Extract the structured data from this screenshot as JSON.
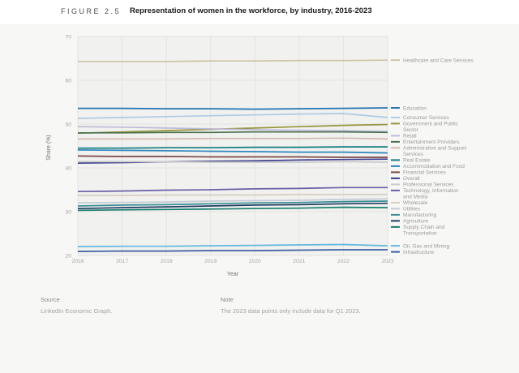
{
  "figure": {
    "label": "FIGURE 2.5",
    "title": "Representation of women in the workforce, by industry, 2016-2023"
  },
  "chart_data": {
    "type": "line",
    "x": [
      2016,
      2017,
      2018,
      2019,
      2020,
      2021,
      2022,
      2023
    ],
    "xlabel": "Year",
    "ylabel": "Share (%)",
    "ylim": [
      20,
      70
    ],
    "yticks": [
      20,
      30,
      40,
      50,
      60,
      70
    ],
    "grid": true,
    "legend_position": "right",
    "series": [
      {
        "name": "Healthcare and Care Services",
        "legend_lines": [
          "Healthcare and Care Services"
        ],
        "color": "#cdc5a2",
        "values": [
          64.3,
          64.3,
          64.3,
          64.4,
          64.4,
          64.5,
          64.5,
          64.6
        ]
      },
      {
        "name": "Education",
        "legend_lines": [
          "Education"
        ],
        "color": "#2272b2",
        "values": [
          53.6,
          53.6,
          53.5,
          53.5,
          53.4,
          53.5,
          53.6,
          53.7
        ]
      },
      {
        "name": "Consumer Services",
        "legend_lines": [
          "Consumer Services"
        ],
        "color": "#aecbe3",
        "values": [
          51.3,
          51.5,
          51.7,
          51.9,
          52.1,
          52.3,
          52.4,
          51.5
        ]
      },
      {
        "name": "Government and Public Sector",
        "legend_lines": [
          "Government and Public",
          "Sector"
        ],
        "color": "#96953e",
        "values": [
          47.9,
          48.2,
          48.5,
          48.8,
          49.1,
          49.4,
          49.7,
          49.9
        ]
      },
      {
        "name": "Retail",
        "legend_lines": [
          "Retail"
        ],
        "color": "#bebad7",
        "values": [
          49.4,
          49.3,
          49.1,
          48.9,
          48.7,
          48.6,
          48.5,
          48.3
        ]
      },
      {
        "name": "Entertainment Providers",
        "legend_lines": [
          "Entertainment Providers"
        ],
        "color": "#49714e",
        "values": [
          48.0,
          48.0,
          48.1,
          48.1,
          48.2,
          48.2,
          48.2,
          48.1
        ]
      },
      {
        "name": "Administrative and Support Services",
        "legend_lines": [
          "Administrative and Support",
          "Services"
        ],
        "color": "#cdbbb1",
        "values": [
          46.6,
          46.6,
          46.6,
          46.7,
          46.7,
          46.7,
          46.8,
          46.6
        ]
      },
      {
        "name": "Real Estate",
        "legend_lines": [
          "Real Estate"
        ],
        "color": "#0f7a80",
        "values": [
          44.5,
          44.5,
          44.6,
          44.6,
          44.7,
          44.7,
          44.8,
          44.8
        ]
      },
      {
        "name": "Accommodation and Food",
        "legend_lines": [
          "Accommodation and Food"
        ],
        "color": "#2c86be",
        "values": [
          44.1,
          44.0,
          43.9,
          43.8,
          43.7,
          43.6,
          43.6,
          43.4
        ]
      },
      {
        "name": "Financial Services",
        "legend_lines": [
          "Financial Services"
        ],
        "color": "#7c4a47",
        "values": [
          42.7,
          42.6,
          42.6,
          42.5,
          42.5,
          42.5,
          42.4,
          42.4
        ]
      },
      {
        "name": "Overall",
        "legend_lines": [
          "Overall"
        ],
        "color": "#3a3a8e",
        "values": [
          41.1,
          41.2,
          41.4,
          41.5,
          41.6,
          41.8,
          41.9,
          42.0
        ]
      },
      {
        "name": "Professional Services",
        "legend_lines": [
          "Professional Services"
        ],
        "color": "#c9c9c9",
        "values": [
          41.4,
          41.4,
          41.4,
          41.3,
          41.3,
          41.3,
          41.4,
          41.3
        ]
      },
      {
        "name": "Technology, Information and Media",
        "legend_lines": [
          "Technology, Information",
          "and Media"
        ],
        "color": "#6a5fa7",
        "values": [
          34.6,
          34.7,
          34.9,
          35.0,
          35.2,
          35.3,
          35.5,
          35.5
        ]
      },
      {
        "name": "Wholesale",
        "legend_lines": [
          "Wholesale"
        ],
        "color": "#d5cfc1",
        "values": [
          33.7,
          33.7,
          33.8,
          33.8,
          33.8,
          33.9,
          33.9,
          33.9
        ]
      },
      {
        "name": "Utilities",
        "legend_lines": [
          "Utilities"
        ],
        "color": "#c6cad3",
        "values": [
          32.0,
          32.1,
          32.2,
          32.4,
          32.5,
          32.6,
          32.8,
          32.9
        ]
      },
      {
        "name": "Manufacturing",
        "legend_lines": [
          "Manufacturing"
        ],
        "color": "#378e94",
        "values": [
          31.3,
          31.5,
          31.6,
          31.8,
          32.0,
          32.1,
          32.3,
          32.4
        ]
      },
      {
        "name": "Agriculture",
        "legend_lines": [
          "Agriculture"
        ],
        "color": "#203d62",
        "values": [
          30.7,
          30.9,
          31.1,
          31.3,
          31.5,
          31.6,
          31.8,
          31.9
        ]
      },
      {
        "name": "Supply Chain and Transportation",
        "legend_lines": [
          "Supply Chain and",
          "Transportation"
        ],
        "color": "#177f6c",
        "values": [
          30.3,
          30.4,
          30.5,
          30.6,
          30.7,
          30.8,
          31.0,
          30.9
        ]
      },
      {
        "name": "Oil, Gas and Mining",
        "legend_lines": [
          "Oil, Gas and Mining"
        ],
        "color": "#5fb7e0",
        "values": [
          22.0,
          22.1,
          22.1,
          22.2,
          22.3,
          22.4,
          22.5,
          22.2
        ]
      },
      {
        "name": "Infrastructure",
        "legend_lines": [
          "Infrastructure"
        ],
        "color": "#3c5fa4",
        "values": [
          20.9,
          21.0,
          21.0,
          21.1,
          21.1,
          21.2,
          21.3,
          21.3
        ]
      }
    ]
  },
  "footer": {
    "source": {
      "heading": "Source",
      "text": "LinkedIn Economic Graph."
    },
    "note": {
      "heading": "Note",
      "text": "The 2023 data points only include data for Q1 2023."
    }
  },
  "colors": {
    "panel_bg": "#f7f7f5",
    "plot_bg": "#f1f1ef",
    "gridline": "#e3e3e1",
    "tick_text": "#a5a5a5",
    "legend_text": "#9b9b9b"
  }
}
